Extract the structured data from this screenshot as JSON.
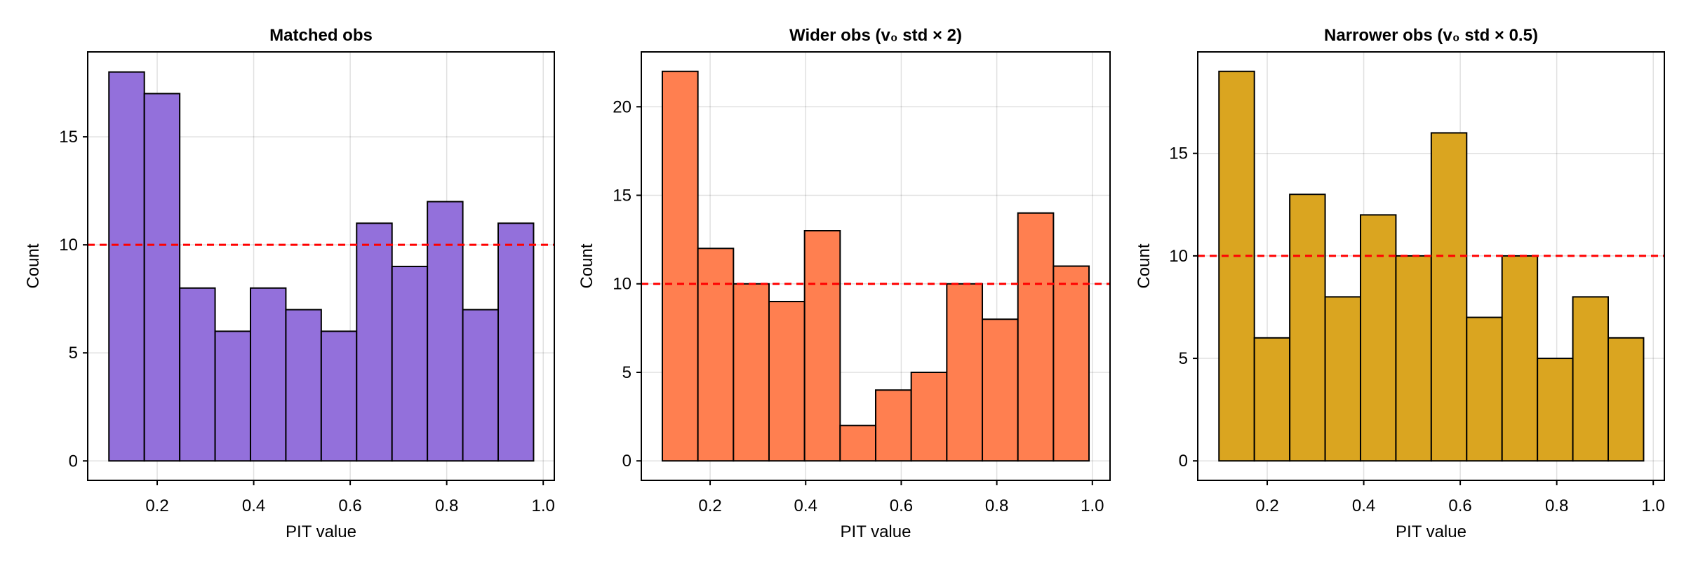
{
  "chart_data": [
    {
      "type": "bar",
      "title": "Matched obs",
      "xlabel": "PIT value",
      "ylabel": "Count",
      "bin_edges_range": [
        0.1,
        0.98
      ],
      "values": [
        18,
        17,
        8,
        6,
        8,
        7,
        6,
        11,
        9,
        12,
        7,
        11
      ],
      "xlim": [
        0.056,
        1.023
      ],
      "ylim": [
        -0.9,
        18.93
      ],
      "xticks": [
        "0.2",
        "0.4",
        "0.6",
        "0.8",
        "1.0"
      ],
      "yticks": [
        "0",
        "5",
        "10",
        "15"
      ],
      "reference_line": 10,
      "color": "#9370DB",
      "grid": true
    },
    {
      "type": "bar",
      "title": "Wider obs (v₀ std × 2)",
      "xlabel": "PIT value",
      "ylabel": "Count",
      "bin_edges_range": [
        0.1,
        0.993
      ],
      "values": [
        22,
        12,
        10,
        9,
        13,
        2,
        4,
        5,
        10,
        8,
        14,
        11
      ],
      "xlim": [
        0.056,
        1.037
      ],
      "ylim": [
        -1.1,
        23.1
      ],
      "xticks": [
        "0.2",
        "0.4",
        "0.6",
        "0.8",
        "1.0"
      ],
      "yticks": [
        "0",
        "5",
        "10",
        "15",
        "20"
      ],
      "reference_line": 10,
      "color": "#FF7F50",
      "grid": true
    },
    {
      "type": "bar",
      "title": "Narrower obs (v₀ std × 0.5)",
      "xlabel": "PIT value",
      "ylabel": "Count",
      "bin_edges_range": [
        0.1,
        0.98
      ],
      "values": [
        19,
        6,
        13,
        8,
        12,
        10,
        16,
        7,
        10,
        5,
        8,
        6
      ],
      "xlim": [
        0.056,
        1.023
      ],
      "ylim": [
        -0.95,
        19.95
      ],
      "xticks": [
        "0.2",
        "0.4",
        "0.6",
        "0.8",
        "1.0"
      ],
      "yticks": [
        "0",
        "5",
        "10",
        "15"
      ],
      "reference_line": 10,
      "color": "#DAA520",
      "grid": true
    }
  ],
  "reference_line_color": "#FF0000"
}
